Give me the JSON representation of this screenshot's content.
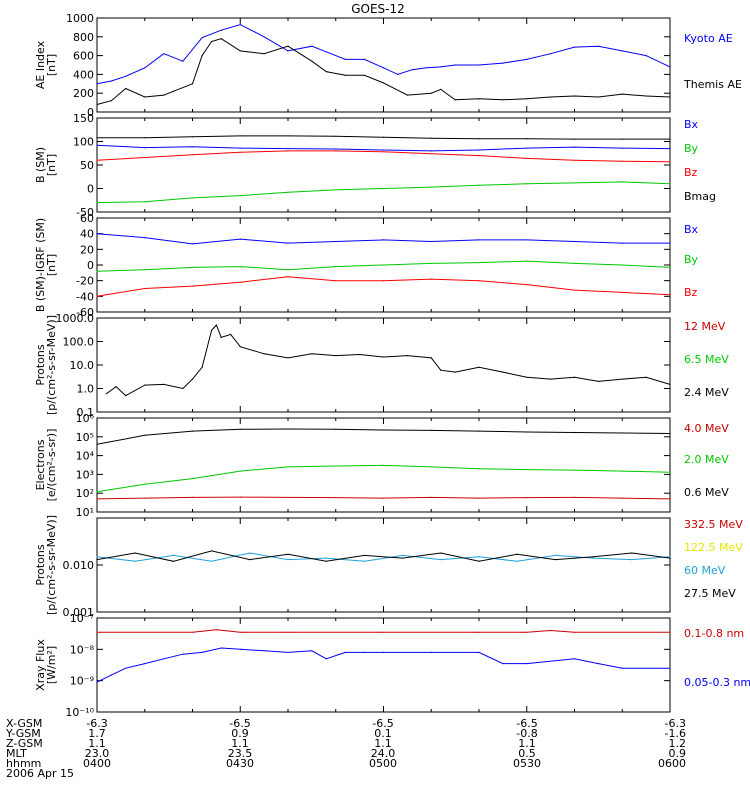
{
  "title": "GOES-12",
  "chart_data": [
    {
      "type": "line",
      "id": "ae",
      "ylabel": [
        "AE Index",
        "[nT]"
      ],
      "ylim": [
        0,
        1000
      ],
      "yscale": "linear",
      "yticks": [
        0,
        200,
        400,
        600,
        800,
        1000
      ],
      "ytick_labels": [
        "0",
        "200",
        "400",
        "600",
        "800",
        "1000"
      ],
      "series": [
        {
          "name": "Kyoto AE",
          "color": "#0000ff",
          "x": [
            0,
            3,
            6,
            10,
            14,
            18,
            22,
            26,
            30,
            35,
            40,
            45,
            48,
            52,
            56,
            60,
            63,
            66,
            69,
            72,
            75,
            80,
            85,
            90,
            95,
            100,
            105,
            110,
            115,
            120
          ],
          "y": [
            300,
            330,
            380,
            470,
            620,
            540,
            790,
            870,
            930,
            800,
            650,
            700,
            640,
            560,
            560,
            470,
            400,
            450,
            470,
            480,
            500,
            500,
            520,
            560,
            620,
            690,
            700,
            650,
            600,
            480
          ]
        },
        {
          "name": "Themis AE",
          "color": "#000000",
          "x": [
            0,
            3,
            6,
            10,
            14,
            16,
            20,
            22,
            24,
            26,
            30,
            35,
            40,
            45,
            48,
            52,
            56,
            60,
            65,
            70,
            72,
            75,
            80,
            85,
            90,
            95,
            100,
            105,
            110,
            115,
            120
          ],
          "y": [
            80,
            120,
            250,
            160,
            180,
            220,
            300,
            600,
            750,
            780,
            650,
            620,
            700,
            540,
            430,
            390,
            390,
            310,
            180,
            200,
            240,
            130,
            140,
            130,
            140,
            160,
            170,
            160,
            190,
            170,
            160
          ]
        }
      ]
    },
    {
      "type": "line",
      "id": "bsm",
      "ylabel": [
        "B (SM)",
        "[nT]"
      ],
      "ylim": [
        -50,
        150
      ],
      "yscale": "linear",
      "yticks": [
        -50,
        0,
        50,
        100,
        150
      ],
      "ytick_labels": [
        "-50",
        "0",
        "50",
        "100",
        "150"
      ],
      "series": [
        {
          "name": "Bx",
          "color": "#0000ff",
          "x": [
            0,
            10,
            20,
            30,
            40,
            50,
            60,
            70,
            80,
            90,
            100,
            110,
            120
          ],
          "y": [
            92,
            87,
            89,
            86,
            85,
            84,
            82,
            80,
            82,
            86,
            88,
            86,
            85
          ]
        },
        {
          "name": "By",
          "color": "#00c800",
          "x": [
            0,
            10,
            20,
            30,
            40,
            50,
            60,
            70,
            80,
            90,
            100,
            110,
            120
          ],
          "y": [
            -30,
            -28,
            -20,
            -15,
            -8,
            -3,
            0,
            3,
            7,
            10,
            12,
            14,
            10
          ]
        },
        {
          "name": "Bz",
          "color": "#ff0000",
          "x": [
            0,
            10,
            20,
            30,
            40,
            50,
            60,
            70,
            80,
            90,
            100,
            110,
            120
          ],
          "y": [
            60,
            66,
            72,
            77,
            80,
            80,
            78,
            74,
            70,
            64,
            60,
            58,
            57
          ]
        },
        {
          "name": "Bmag",
          "color": "#000000",
          "x": [
            0,
            10,
            20,
            30,
            40,
            50,
            60,
            70,
            80,
            90,
            100,
            110,
            120
          ],
          "y": [
            108,
            108,
            110,
            112,
            112,
            111,
            109,
            107,
            106,
            106,
            105,
            105,
            105
          ]
        }
      ]
    },
    {
      "type": "line",
      "id": "bmodel",
      "ylabel": [
        "B (SM)-IGRF (SM)",
        "[nT]"
      ],
      "ylim": [
        -60,
        60
      ],
      "yscale": "linear",
      "yticks": [
        -60,
        -40,
        -20,
        0,
        20,
        40,
        60
      ],
      "ytick_labels": [
        "-60",
        "-40",
        "-20",
        "0",
        "20",
        "40",
        "60"
      ],
      "series": [
        {
          "name": "Bx",
          "color": "#0000ff",
          "x": [
            0,
            10,
            20,
            30,
            40,
            50,
            60,
            70,
            80,
            90,
            100,
            110,
            120
          ],
          "y": [
            40,
            35,
            27,
            33,
            28,
            30,
            32,
            30,
            32,
            32,
            30,
            28,
            28
          ]
        },
        {
          "name": "By",
          "color": "#00c800",
          "x": [
            0,
            10,
            20,
            30,
            40,
            50,
            60,
            70,
            80,
            90,
            100,
            110,
            120
          ],
          "y": [
            -8,
            -6,
            -3,
            -2,
            -6,
            -2,
            0,
            2,
            3,
            5,
            2,
            0,
            -3
          ]
        },
        {
          "name": "Bz",
          "color": "#ff0000",
          "x": [
            0,
            10,
            20,
            30,
            40,
            50,
            60,
            70,
            80,
            90,
            100,
            110,
            120
          ],
          "y": [
            -40,
            -30,
            -27,
            -22,
            -15,
            -20,
            -20,
            -18,
            -20,
            -25,
            -32,
            -35,
            -38
          ]
        }
      ]
    },
    {
      "type": "line",
      "id": "protons1",
      "ylabel": [
        "Protons",
        "[p/(cm²-s-sr-MeV)]"
      ],
      "ylim": [
        0.1,
        1000
      ],
      "yscale": "log",
      "yticks": [
        0.1,
        1,
        10,
        100,
        1000
      ],
      "ytick_labels": [
        "0.1",
        "1.0",
        "10.0",
        "100.0",
        "1000.0"
      ],
      "series": [
        {
          "name": "12 MeV",
          "color": "#c80000",
          "x": [],
          "y": []
        },
        {
          "name": "6.5 MeV",
          "color": "#00c800",
          "x": [],
          "y": []
        },
        {
          "name": "2.4 MeV",
          "color": "#000000",
          "x": [
            2,
            4,
            6,
            10,
            14,
            18,
            20,
            22,
            24,
            25,
            26,
            28,
            30,
            35,
            40,
            45,
            50,
            55,
            60,
            65,
            70,
            72,
            75,
            80,
            85,
            90,
            95,
            100,
            105,
            110,
            115,
            120
          ],
          "y": [
            0.6,
            1.2,
            0.5,
            1.4,
            1.5,
            1.0,
            2.5,
            8,
            300,
            500,
            150,
            200,
            60,
            30,
            20,
            30,
            25,
            28,
            22,
            25,
            20,
            6,
            5,
            8,
            5,
            3,
            2.5,
            3,
            2,
            2.5,
            3,
            1.5
          ]
        }
      ]
    },
    {
      "type": "line",
      "id": "electrons",
      "ylabel": [
        "Electrons",
        "[e/(cm²-s-sr)]"
      ],
      "ylim": [
        10,
        1000000
      ],
      "yscale": "log",
      "yticks": [
        10,
        100,
        1000,
        10000,
        100000,
        1000000
      ],
      "ytick_labels": [
        "10¹",
        "10²",
        "10³",
        "10⁴",
        "10⁵",
        "10⁶"
      ],
      "series": [
        {
          "name": "4.0 MeV",
          "color": "#c80000",
          "x": [
            0,
            10,
            20,
            30,
            40,
            50,
            60,
            70,
            80,
            90,
            100,
            110,
            120
          ],
          "y": [
            50,
            55,
            60,
            62,
            60,
            58,
            55,
            60,
            55,
            58,
            60,
            55,
            50
          ]
        },
        {
          "name": "2.0 MeV",
          "color": "#00c800",
          "x": [
            0,
            10,
            20,
            30,
            40,
            50,
            60,
            70,
            80,
            90,
            100,
            110,
            120
          ],
          "y": [
            120,
            300,
            600,
            1500,
            2500,
            2800,
            3000,
            2500,
            2000,
            1800,
            1700,
            1500,
            1300
          ]
        },
        {
          "name": "0.6 MeV",
          "color": "#000000",
          "x": [
            0,
            10,
            20,
            30,
            40,
            50,
            60,
            70,
            80,
            90,
            100,
            110,
            120
          ],
          "y": [
            40000,
            120000,
            200000,
            250000,
            260000,
            250000,
            230000,
            220000,
            200000,
            180000,
            170000,
            160000,
            150000
          ]
        }
      ]
    },
    {
      "type": "line",
      "id": "protons2",
      "ylabel": [
        "Protons",
        "[p/(cm²-s-sr-MeV)]"
      ],
      "ylim": [
        0.001,
        0.1
      ],
      "yscale": "log",
      "yticks": [
        0.001,
        0.01,
        0.1
      ],
      "ytick_labels": [
        "0.001",
        "0.010",
        ""
      ],
      "series": [
        {
          "name": "332.5 MeV",
          "color": "#c80000",
          "x": [],
          "y": []
        },
        {
          "name": "122.5 MeV",
          "color": "#e6e600",
          "x": [],
          "y": []
        },
        {
          "name": "60 MeV",
          "color": "#1ea0dc",
          "x": [
            0,
            8,
            16,
            24,
            32,
            40,
            48,
            56,
            64,
            72,
            80,
            88,
            96,
            104,
            112,
            120
          ],
          "y": [
            0.015,
            0.012,
            0.016,
            0.012,
            0.018,
            0.013,
            0.014,
            0.012,
            0.016,
            0.013,
            0.015,
            0.012,
            0.016,
            0.014,
            0.013,
            0.015
          ]
        },
        {
          "name": "27.5 MeV",
          "color": "#000000",
          "x": [
            0,
            8,
            16,
            24,
            32,
            40,
            48,
            56,
            64,
            72,
            80,
            88,
            96,
            104,
            112,
            120
          ],
          "y": [
            0.013,
            0.018,
            0.012,
            0.02,
            0.013,
            0.017,
            0.012,
            0.016,
            0.014,
            0.018,
            0.012,
            0.017,
            0.013,
            0.015,
            0.018,
            0.014
          ]
        }
      ]
    },
    {
      "type": "line",
      "id": "xray",
      "ylabel": [
        "Xray Flux",
        "[W/m²]"
      ],
      "ylim": [
        1e-10,
        1e-07
      ],
      "yscale": "log",
      "yticks": [
        1e-10,
        1e-09,
        1e-08,
        1e-07
      ],
      "ytick_labels": [
        "10⁻¹⁰",
        "10⁻⁹",
        "10⁻⁸",
        "10⁻⁷"
      ],
      "series": [
        {
          "name": "0.1-0.8 nm",
          "color": "#c80000",
          "x": [
            0,
            20,
            25,
            30,
            40,
            60,
            80,
            90,
            95,
            100,
            120
          ],
          "y": [
            3.5e-08,
            3.5e-08,
            4.2e-08,
            3.5e-08,
            3.5e-08,
            3.5e-08,
            3.5e-08,
            3.5e-08,
            4e-08,
            3.5e-08,
            3.5e-08
          ]
        },
        {
          "name": "0.05-0.3 nm",
          "color": "#0000ff",
          "x": [
            0,
            3,
            6,
            10,
            14,
            18,
            22,
            26,
            30,
            35,
            40,
            45,
            48,
            52,
            56,
            60,
            70,
            80,
            85,
            90,
            100,
            105,
            110,
            120
          ],
          "y": [
            9e-10,
            1.5e-09,
            2.5e-09,
            3.5e-09,
            5e-09,
            7e-09,
            8e-09,
            1.1e-08,
            1e-08,
            9e-09,
            8e-09,
            9e-09,
            5e-09,
            8e-09,
            8e-09,
            8e-09,
            8e-09,
            8e-09,
            3.5e-09,
            3.5e-09,
            5e-09,
            3.5e-09,
            2.5e-09,
            2.5e-09
          ]
        }
      ]
    }
  ],
  "ephemeris": {
    "row_labels": [
      "X-GSM",
      "Y-GSM",
      "Z-GSM",
      "MLT",
      "hhmm",
      "2006 Apr 15"
    ],
    "columns": [
      [
        "-6.3",
        "1.7",
        "1.1",
        "23.0",
        "0400"
      ],
      [
        "-6.5",
        "0.9",
        "1.1",
        "23.5",
        "0430"
      ],
      [
        "-6.5",
        "0.1",
        "1.1",
        "24.0",
        "0500"
      ],
      [
        "-6.5",
        "-0.8",
        "1.1",
        "0.5",
        "0530"
      ],
      [
        "-6.3",
        "-1.6",
        "1.2",
        "0.9",
        "0600"
      ]
    ]
  },
  "colors": {
    "frame": "#000000",
    "background": "#ffffff"
  }
}
